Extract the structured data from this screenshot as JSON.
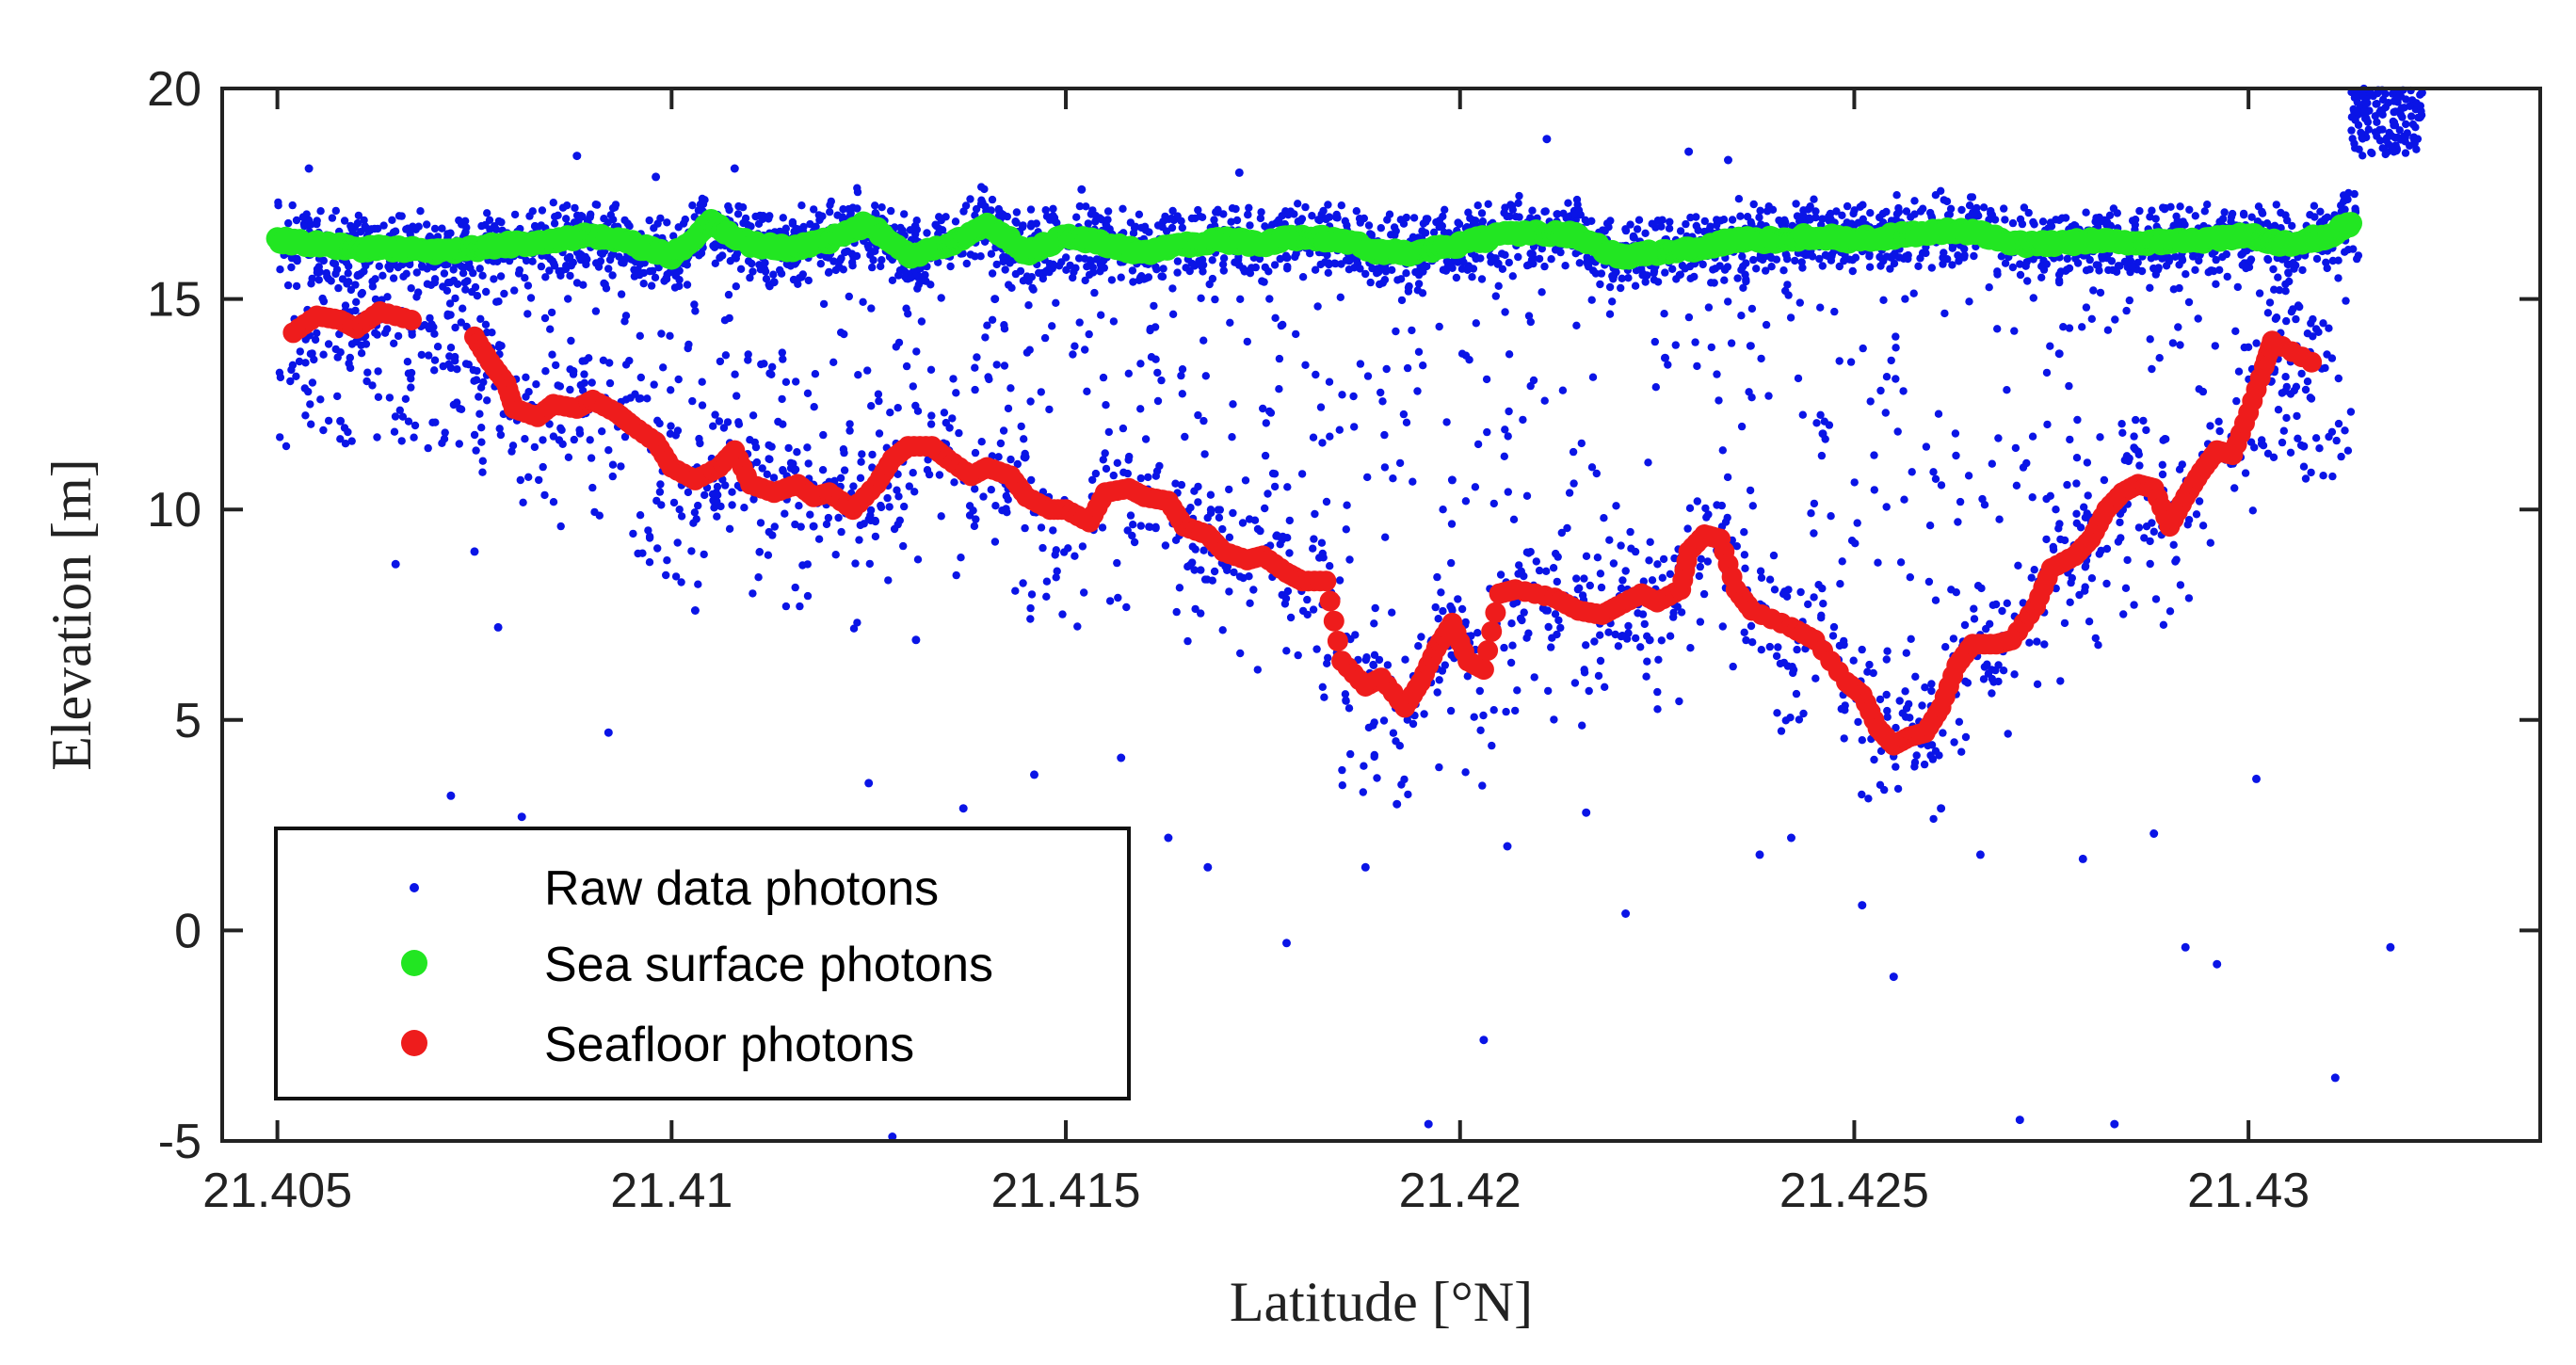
{
  "colors": {
    "raw": "#0a14e6",
    "surface": "#22e622",
    "seafloor": "#ee1c1c",
    "axis": "#222222"
  },
  "chart_data": {
    "type": "scatter",
    "title": "",
    "xlabel": "Latitude [°N]",
    "ylabel": "Elevation [m]",
    "xlim": [
      21.4043,
      21.4337
    ],
    "ylim": [
      -5,
      20
    ],
    "xticks": [
      21.405,
      21.41,
      21.415,
      21.42,
      21.425,
      21.43
    ],
    "xtick_labels": [
      "21.405",
      "21.41",
      "21.415",
      "21.42",
      "21.425",
      "21.43"
    ],
    "yticks": [
      -5,
      0,
      5,
      10,
      15,
      20
    ],
    "ytick_labels": [
      "-5",
      "0",
      "5",
      "10",
      "15",
      "20"
    ],
    "legend_position": "bottom-left",
    "series": [
      {
        "name": "Raw data photons",
        "marker": "small-dot",
        "x_range": [
          21.405,
          21.4322
        ],
        "description_values": {
          "surface_band_elevation": [
            15.6,
            17.0
          ],
          "seafloor_band_follows_red": true,
          "scatter_outliers_elevation_range": [
            -4.8,
            18.8
          ],
          "steep_rise_end_elevation": [
            18.5,
            20
          ]
        },
        "points": [
          [
            21.4054,
            18.1
          ],
          [
            21.4058,
            12.1
          ],
          [
            21.4065,
            8.7
          ],
          [
            21.4072,
            3.2
          ],
          [
            21.4075,
            9.0
          ],
          [
            21.4078,
            7.2
          ],
          [
            21.4081,
            2.7
          ],
          [
            21.4088,
            18.4
          ],
          [
            21.4092,
            4.7
          ],
          [
            21.4098,
            17.9
          ],
          [
            21.4103,
            7.6
          ],
          [
            21.4108,
            18.1
          ],
          [
            21.4113,
            15.4
          ],
          [
            21.4118,
            9.6
          ],
          [
            21.4121,
            2.3
          ],
          [
            21.4125,
            3.5
          ],
          [
            21.4128,
            -4.9
          ],
          [
            21.4131,
            6.9
          ],
          [
            21.4137,
            2.9
          ],
          [
            21.4141,
            15.0
          ],
          [
            21.4146,
            3.7
          ],
          [
            21.4152,
            17.6
          ],
          [
            21.4157,
            4.1
          ],
          [
            21.4163,
            2.2
          ],
          [
            21.4168,
            1.5
          ],
          [
            21.4172,
            18.0
          ],
          [
            21.4178,
            -0.3
          ],
          [
            21.4183,
            16.9
          ],
          [
            21.4188,
            1.5
          ],
          [
            21.4192,
            3.0
          ],
          [
            21.4196,
            -4.6
          ],
          [
            21.4199,
            10.7
          ],
          [
            21.4203,
            -2.6
          ],
          [
            21.4206,
            2.0
          ],
          [
            21.4211,
            18.8
          ],
          [
            21.4216,
            2.8
          ],
          [
            21.4221,
            0.4
          ],
          [
            21.4226,
            13.6
          ],
          [
            21.4229,
            18.5
          ],
          [
            21.4234,
            18.3
          ],
          [
            21.4238,
            1.8
          ],
          [
            21.4242,
            2.2
          ],
          [
            21.4246,
            11.8
          ],
          [
            21.4251,
            0.6
          ],
          [
            21.4255,
            -1.1
          ],
          [
            21.4261,
            2.9
          ],
          [
            21.4266,
            1.8
          ],
          [
            21.4271,
            -4.5
          ],
          [
            21.4276,
            13.7
          ],
          [
            21.4279,
            1.7
          ],
          [
            21.4283,
            -4.6
          ],
          [
            21.4288,
            2.3
          ],
          [
            21.4292,
            -0.4
          ],
          [
            21.4296,
            -0.8
          ],
          [
            21.4301,
            3.6
          ],
          [
            21.4307,
            11.5
          ],
          [
            21.4311,
            -3.5
          ],
          [
            21.4318,
            -0.4
          ],
          [
            21.4322,
            19.9
          ]
        ]
      },
      {
        "name": "Sea surface photons",
        "marker": "filled-circle",
        "points": [
          [
            21.405,
            16.4
          ],
          [
            21.4055,
            16.3
          ],
          [
            21.406,
            16.2
          ],
          [
            21.4065,
            16.2
          ],
          [
            21.407,
            16.1
          ],
          [
            21.4075,
            16.2
          ],
          [
            21.408,
            16.3
          ],
          [
            21.4085,
            16.4
          ],
          [
            21.409,
            16.5
          ],
          [
            21.4095,
            16.3
          ],
          [
            21.41,
            16.0
          ],
          [
            21.4105,
            16.8
          ],
          [
            21.411,
            16.3
          ],
          [
            21.4115,
            16.2
          ],
          [
            21.412,
            16.4
          ],
          [
            21.4125,
            16.8
          ],
          [
            21.413,
            16.0
          ],
          [
            21.4135,
            16.3
          ],
          [
            21.414,
            16.8
          ],
          [
            21.4145,
            16.1
          ],
          [
            21.415,
            16.5
          ],
          [
            21.4155,
            16.3
          ],
          [
            21.416,
            16.1
          ],
          [
            21.4165,
            16.3
          ],
          [
            21.417,
            16.4
          ],
          [
            21.4175,
            16.3
          ],
          [
            21.418,
            16.5
          ],
          [
            21.4185,
            16.4
          ],
          [
            21.419,
            16.1
          ],
          [
            21.4195,
            16.1
          ],
          [
            21.42,
            16.3
          ],
          [
            21.4205,
            16.5
          ],
          [
            21.421,
            16.6
          ],
          [
            21.4215,
            16.5
          ],
          [
            21.422,
            16.0
          ],
          [
            21.4225,
            16.1
          ],
          [
            21.423,
            16.2
          ],
          [
            21.4235,
            16.4
          ],
          [
            21.424,
            16.4
          ],
          [
            21.4245,
            16.5
          ],
          [
            21.425,
            16.4
          ],
          [
            21.4255,
            16.5
          ],
          [
            21.426,
            16.6
          ],
          [
            21.4265,
            16.6
          ],
          [
            21.427,
            16.3
          ],
          [
            21.4275,
            16.3
          ],
          [
            21.428,
            16.4
          ],
          [
            21.4285,
            16.3
          ],
          [
            21.429,
            16.4
          ],
          [
            21.4295,
            16.4
          ],
          [
            21.43,
            16.5
          ],
          [
            21.4305,
            16.3
          ],
          [
            21.431,
            16.5
          ],
          [
            21.4313,
            16.8
          ]
        ]
      },
      {
        "name": "Seafloor photons",
        "marker": "filled-circle",
        "points": [
          [
            21.4052,
            14.2
          ],
          [
            21.4055,
            14.6
          ],
          [
            21.4058,
            14.5
          ],
          [
            21.406,
            14.3
          ],
          [
            21.4063,
            14.7
          ],
          [
            21.4067,
            14.5
          ],
          [
            21.4075,
            14.1
          ],
          [
            21.4077,
            13.5
          ],
          [
            21.4079,
            13.0
          ],
          [
            21.408,
            12.4
          ],
          [
            21.4083,
            12.2
          ],
          [
            21.4085,
            12.5
          ],
          [
            21.4088,
            12.4
          ],
          [
            21.409,
            12.6
          ],
          [
            21.4093,
            12.3
          ],
          [
            21.4095,
            12.0
          ],
          [
            21.4098,
            11.6
          ],
          [
            21.41,
            11.0
          ],
          [
            21.4103,
            10.7
          ],
          [
            21.4106,
            11.0
          ],
          [
            21.4108,
            11.4
          ],
          [
            21.411,
            10.6
          ],
          [
            21.4113,
            10.4
          ],
          [
            21.4116,
            10.6
          ],
          [
            21.4118,
            10.3
          ],
          [
            21.412,
            10.4
          ],
          [
            21.4123,
            10.0
          ],
          [
            21.4126,
            10.6
          ],
          [
            21.4128,
            11.2
          ],
          [
            21.413,
            11.5
          ],
          [
            21.4133,
            11.5
          ],
          [
            21.4135,
            11.2
          ],
          [
            21.4138,
            10.8
          ],
          [
            21.414,
            11.0
          ],
          [
            21.4143,
            10.8
          ],
          [
            21.4145,
            10.3
          ],
          [
            21.4148,
            10.0
          ],
          [
            21.415,
            10.0
          ],
          [
            21.4153,
            9.7
          ],
          [
            21.4155,
            10.4
          ],
          [
            21.4158,
            10.5
          ],
          [
            21.416,
            10.3
          ],
          [
            21.4163,
            10.2
          ],
          [
            21.4165,
            9.6
          ],
          [
            21.4168,
            9.4
          ],
          [
            21.417,
            9.0
          ],
          [
            21.4173,
            8.8
          ],
          [
            21.4175,
            8.9
          ],
          [
            21.4178,
            8.5
          ],
          [
            21.418,
            8.3
          ],
          [
            21.4183,
            8.3
          ],
          [
            21.4185,
            6.4
          ],
          [
            21.4188,
            5.8
          ],
          [
            21.419,
            6.0
          ],
          [
            21.4193,
            5.3
          ],
          [
            21.4195,
            5.9
          ],
          [
            21.4197,
            6.7
          ],
          [
            21.4199,
            7.3
          ],
          [
            21.4201,
            6.4
          ],
          [
            21.4203,
            6.2
          ],
          [
            21.4205,
            8.0
          ],
          [
            21.4207,
            8.1
          ],
          [
            21.4212,
            7.9
          ],
          [
            21.4215,
            7.6
          ],
          [
            21.4218,
            7.5
          ],
          [
            21.422,
            7.7
          ],
          [
            21.4223,
            8.0
          ],
          [
            21.4225,
            7.8
          ],
          [
            21.4228,
            8.1
          ],
          [
            21.4229,
            9.0
          ],
          [
            21.4231,
            9.4
          ],
          [
            21.4233,
            9.3
          ],
          [
            21.4235,
            8.1
          ],
          [
            21.4237,
            7.6
          ],
          [
            21.4242,
            7.2
          ],
          [
            21.4245,
            6.9
          ],
          [
            21.4249,
            5.9
          ],
          [
            21.4251,
            5.6
          ],
          [
            21.4253,
            4.8
          ],
          [
            21.4255,
            4.4
          ],
          [
            21.4257,
            4.6
          ],
          [
            21.4259,
            4.7
          ],
          [
            21.4261,
            5.3
          ],
          [
            21.4263,
            6.3
          ],
          [
            21.4265,
            6.8
          ],
          [
            21.4268,
            6.8
          ],
          [
            21.427,
            6.9
          ],
          [
            21.4273,
            7.7
          ],
          [
            21.4275,
            8.6
          ],
          [
            21.4278,
            8.9
          ],
          [
            21.428,
            9.3
          ],
          [
            21.4282,
            10.0
          ],
          [
            21.4284,
            10.4
          ],
          [
            21.4286,
            10.6
          ],
          [
            21.4288,
            10.5
          ],
          [
            21.429,
            9.6
          ],
          [
            21.4292,
            10.3
          ],
          [
            21.4294,
            10.9
          ],
          [
            21.4296,
            11.4
          ],
          [
            21.4298,
            11.3
          ],
          [
            21.43,
            12.3
          ],
          [
            21.4302,
            13.4
          ],
          [
            21.4303,
            14.0
          ],
          [
            21.4308,
            13.5
          ]
        ]
      }
    ]
  },
  "legend": {
    "entries": [
      "Raw data photons",
      "Sea surface photons",
      "Seafloor photons"
    ]
  }
}
